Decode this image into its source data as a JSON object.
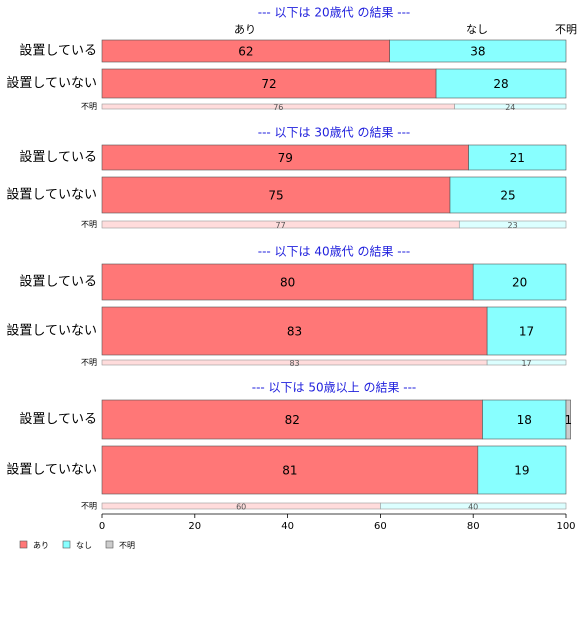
{
  "chart_data": {
    "type": "bar",
    "orientation": "horizontal",
    "stacked": true,
    "series": [
      {
        "name": "あり",
        "color": "#ff7777",
        "light_color": "#ffdcdc"
      },
      {
        "name": "なし",
        "color": "#88ffff",
        "light_color": "#dcffff"
      },
      {
        "name": "不明",
        "color": "#cccccc",
        "light_color": "#eeeeee"
      }
    ],
    "panels": [
      {
        "title": "--- 以下は 20歳代 の結果 ---",
        "categories": [
          "設置している",
          "設置していない",
          "不明"
        ],
        "values": [
          [
            62,
            38,
            null
          ],
          [
            72,
            28,
            null
          ],
          [
            76,
            24,
            null
          ]
        ]
      },
      {
        "title": "--- 以下は 30歳代 の結果 ---",
        "categories": [
          "設置している",
          "設置していない",
          "不明"
        ],
        "values": [
          [
            79,
            21,
            null
          ],
          [
            75,
            25,
            null
          ],
          [
            77,
            23,
            null
          ]
        ]
      },
      {
        "title": "--- 以下は 40歳代 の結果 ---",
        "categories": [
          "設置している",
          "設置していない",
          "不明"
        ],
        "values": [
          [
            80,
            20,
            null
          ],
          [
            83,
            17,
            null
          ],
          [
            83,
            17,
            null
          ]
        ]
      },
      {
        "title": "--- 以下は 50歳以上 の結果 ---",
        "categories": [
          "設置している",
          "設置していない",
          "不明"
        ],
        "values": [
          [
            82,
            18,
            1
          ],
          [
            81,
            19,
            null
          ],
          [
            60,
            40,
            null
          ]
        ]
      }
    ],
    "xlim": [
      0,
      100
    ],
    "xticks": [
      0,
      20,
      40,
      60,
      80,
      100
    ]
  }
}
